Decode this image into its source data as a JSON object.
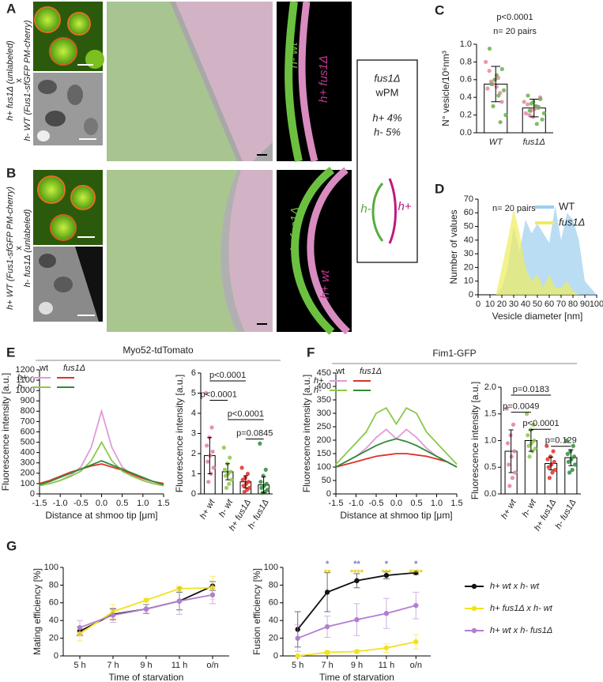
{
  "panels": [
    "A",
    "B",
    "C",
    "D",
    "E",
    "F",
    "G"
  ],
  "images": [
    {
      "side_text": [
        "h+ fus1Δ (unlabeled)",
        "x",
        "h- WT (Fus1-sfGFP PM-cherry)"
      ],
      "labels": [
        "h- wt",
        "h+ fus1Δ"
      ]
    },
    {
      "side_text": [
        "h+ WT (Fus1-sfGFP PM-cherry)",
        "x",
        "h- fus1Δ (unlabeled)"
      ],
      "labels": [
        "h- fus1Δ",
        "h+ wt"
      ]
    }
  ],
  "box": {
    "lines": [
      "fus1Δ",
      "wPM",
      "h+ 4%",
      "h- 5%"
    ],
    "diagram": [
      "h-",
      "h+"
    ]
  },
  "chart_data": [
    {
      "type": "bar",
      "ylabel": "N° vesicle/10⁶nm³",
      "categories": [
        "WT",
        "fus1Δ"
      ],
      "values": [
        0.55,
        0.28
      ],
      "errors": [
        0.2,
        0.1
      ],
      "ylim": [
        0,
        1
      ],
      "yticks": [
        {
          "value": 0,
          "label": "0.0"
        },
        0.2,
        0.4,
        0.6,
        0.8,
        {
          "value": 1,
          "label": "1.0"
        }
      ],
      "annotations": [
        "p<0.0001",
        "n= 20 pairs"
      ],
      "points": [
        {
          "category": "WT",
          "color": "#e3899f",
          "values": [
            0.8,
            0.62,
            0.55,
            0.5,
            0.45,
            0.6,
            0.7,
            0.35,
            0.52,
            0.58
          ]
        },
        {
          "category": "WT",
          "color": "#6ab04c",
          "values": [
            0.95,
            0.72,
            0.65,
            0.55,
            0.48,
            0.42,
            0.3,
            0.2,
            0.12,
            0.6
          ]
        },
        {
          "category": "fus1Δ",
          "color": "#e3899f",
          "values": [
            0.35,
            0.3,
            0.25,
            0.22,
            0.28,
            0.18,
            0.32,
            0.4,
            0.27,
            0.2
          ]
        },
        {
          "category": "fus1Δ",
          "color": "#6ab04c",
          "values": [
            0.42,
            0.38,
            0.3,
            0.25,
            0.15,
            0.1,
            0.33,
            0.22,
            0.29,
            0.35
          ]
        }
      ]
    },
    {
      "type": "area",
      "xlabel": "Vesicle diameter [nm]",
      "ylabel": "Number of values",
      "annotations": [
        "n= 20 pairs"
      ],
      "x": [
        10,
        15,
        20,
        25,
        30,
        35,
        40,
        45,
        50,
        55,
        60,
        65,
        70,
        75,
        80,
        85,
        90,
        95,
        100
      ],
      "series": [
        {
          "name": "WT",
          "color": "#9ccfee",
          "values": [
            0,
            0,
            5,
            20,
            50,
            32,
            55,
            45,
            52,
            45,
            38,
            65,
            40,
            60,
            55,
            40,
            10,
            5,
            0
          ]
        },
        {
          "name": "fus1Δ",
          "color": "#f0ec5c",
          "values": [
            0,
            0,
            20,
            40,
            63,
            45,
            20,
            10,
            15,
            5,
            15,
            5,
            5,
            10,
            3,
            0,
            0,
            0,
            0
          ]
        }
      ],
      "legend": "upper right",
      "xlim": [
        0,
        100
      ],
      "xticks": [
        0,
        10,
        20,
        30,
        40,
        50,
        60,
        70,
        80,
        90,
        100
      ],
      "ylim": [
        0,
        70
      ],
      "yticks": [
        0,
        10,
        20,
        30,
        40,
        50,
        60,
        70
      ]
    },
    {
      "type": "line",
      "title": "Myo52-tdTomato",
      "xlabel": "Distance at shmoo tip [μm]",
      "ylabel": "Fluorescence intensity [a.u.]",
      "legend_rows": [
        "h+",
        "h-"
      ],
      "legend_columns": [
        "wt",
        "fus1Δ"
      ],
      "x": [
        -1.5,
        -1.25,
        -1,
        -0.75,
        -0.5,
        -0.25,
        0,
        0.25,
        0.5,
        0.75,
        1,
        1.25,
        1.5
      ],
      "series": [
        {
          "color": "#e29bd6",
          "values": [
            80,
            100,
            130,
            180,
            260,
            450,
            800,
            450,
            260,
            180,
            130,
            100,
            80
          ]
        },
        {
          "color": "#e0302a",
          "values": [
            100,
            130,
            170,
            210,
            240,
            270,
            290,
            260,
            230,
            190,
            150,
            120,
            100
          ]
        },
        {
          "color": "#8cc84b",
          "values": [
            80,
            100,
            130,
            170,
            220,
            320,
            500,
            320,
            220,
            170,
            130,
            100,
            80
          ]
        },
        {
          "color": "#2e8b3a",
          "values": [
            90,
            120,
            160,
            200,
            240,
            280,
            320,
            280,
            240,
            200,
            160,
            120,
            90
          ]
        }
      ],
      "xlim": [
        -1.5,
        1.5
      ],
      "xticks": [
        -1.5,
        {
          "value": -1,
          "label": "-1.0"
        },
        -0.5,
        {
          "value": 0,
          "label": "0.0"
        },
        0.5,
        {
          "value": 1,
          "label": "1.0"
        },
        1.5
      ],
      "ylim": [
        0,
        1200
      ],
      "yticks": [
        0,
        100,
        200,
        300,
        400,
        500,
        600,
        700,
        800,
        900,
        1000,
        1100,
        1200
      ]
    },
    {
      "type": "bar",
      "ylabel": "Fluorescence intensity [a.u.]",
      "categories": [
        "h+ wt",
        "h- wt",
        "h+ fus1Δ",
        "h- fus1Δ"
      ],
      "values": [
        1.9,
        1.1,
        0.6,
        0.45
      ],
      "errors": [
        0.9,
        0.4,
        0.3,
        0.4
      ],
      "ylim": [
        0,
        6
      ],
      "yticks": [
        0,
        1,
        2,
        3,
        4,
        5,
        6
      ],
      "comparisons": [
        {
          "label": "p<0.0001",
          "pair": [
            "h+ wt",
            "h+ fus1Δ"
          ]
        },
        {
          "label": "p<0.0001",
          "pair": [
            "h+ wt",
            "h- wt"
          ]
        },
        {
          "label": "p<0.0001",
          "pair": [
            "h- wt",
            "h- fus1Δ"
          ]
        },
        {
          "label": "p=0.0845",
          "pair": [
            "h+ fus1Δ",
            "h- fus1Δ"
          ]
        }
      ],
      "points": [
        {
          "category": "h+ wt",
          "color": "#e07fa0",
          "values": [
            5.0,
            3.3,
            2.8,
            2.4,
            2.1,
            1.9,
            1.6,
            1.3,
            1.0,
            0.6
          ]
        },
        {
          "category": "h- wt",
          "color": "#8cc84b",
          "values": [
            2.3,
            1.8,
            1.5,
            1.2,
            1.1,
            1.0,
            0.9,
            0.7,
            0.5,
            0.3
          ]
        },
        {
          "category": "h+ fus1Δ",
          "color": "#e0302a",
          "values": [
            1.3,
            1.0,
            0.8,
            0.7,
            0.6,
            0.5,
            0.4,
            0.3,
            0.2,
            0.1
          ]
        },
        {
          "category": "h- fus1Δ",
          "color": "#2e8b3a",
          "values": [
            2.5,
            1.2,
            0.9,
            0.6,
            0.5,
            0.4,
            0.3,
            0.2,
            0.1,
            0.05
          ]
        }
      ]
    },
    {
      "type": "line",
      "title": "Fim1-GFP",
      "xlabel": "Distance at shmoo tip [μm]",
      "ylabel": "Fluorescence intensity [a.u.]",
      "legend_rows": [
        "h+",
        "h-"
      ],
      "legend_columns": [
        "wt",
        "fus1Δ"
      ],
      "x": [
        -1.5,
        -1.25,
        -1,
        -0.75,
        -0.5,
        -0.25,
        0,
        0.25,
        0.5,
        0.75,
        1,
        1.25,
        1.5
      ],
      "series": [
        {
          "color": "#e29bd6",
          "values": [
            100,
            120,
            140,
            170,
            210,
            240,
            205,
            240,
            210,
            170,
            140,
            120,
            100
          ]
        },
        {
          "color": "#e0302a",
          "values": [
            100,
            110,
            120,
            130,
            140,
            145,
            150,
            150,
            145,
            140,
            130,
            120,
            100
          ]
        },
        {
          "color": "#8cc84b",
          "values": [
            110,
            150,
            190,
            230,
            300,
            320,
            260,
            320,
            300,
            230,
            190,
            150,
            110
          ]
        },
        {
          "color": "#2e8b3a",
          "values": [
            100,
            120,
            140,
            160,
            180,
            195,
            205,
            195,
            180,
            160,
            140,
            120,
            100
          ]
        }
      ],
      "xlim": [
        -1.5,
        1.5
      ],
      "xticks": [
        -1.5,
        {
          "value": -1,
          "label": "-1.0"
        },
        -0.5,
        {
          "value": 0,
          "label": "0.0"
        },
        0.5,
        {
          "value": 1,
          "label": "1.0"
        },
        1.5
      ],
      "ylim": [
        0,
        450
      ],
      "yticks": [
        0,
        50,
        100,
        150,
        200,
        250,
        300,
        350,
        400,
        450
      ]
    },
    {
      "type": "bar",
      "ylabel": "Fluorescence intensity [a.u.]",
      "categories": [
        "h+ wt",
        "h- wt",
        "h+ fus1Δ",
        "h- fus1Δ"
      ],
      "values": [
        0.8,
        1.0,
        0.57,
        0.68
      ],
      "errors": [
        0.4,
        0.2,
        0.12,
        0.15
      ],
      "ylim": [
        0,
        2
      ],
      "yticks": [
        {
          "value": 0,
          "label": "0.0"
        },
        0.5,
        {
          "value": 1,
          "label": "1.0"
        },
        1.5,
        {
          "value": 2,
          "label": "2.0"
        }
      ],
      "comparisons": [
        {
          "label": "p=0.0183",
          "pair": [
            "h+ wt",
            "h+ fus1Δ"
          ]
        },
        {
          "label": "p=0.0049",
          "pair": [
            "h+ wt",
            "h- wt"
          ]
        },
        {
          "label": "p<0.0001",
          "pair": [
            "h- wt",
            "h+ fus1Δ"
          ]
        },
        {
          "label": "p=0.129",
          "pair": [
            "h+ fus1Δ",
            "h- fus1Δ"
          ]
        }
      ],
      "points": [
        {
          "category": "h+ wt",
          "color": "#e07fa0",
          "values": [
            1.6,
            1.3,
            1.1,
            0.95,
            0.8,
            0.7,
            0.55,
            0.4,
            0.3,
            0.15
          ]
        },
        {
          "category": "h- wt",
          "color": "#8cc84b",
          "values": [
            1.5,
            1.3,
            1.2,
            1.1,
            1.0,
            0.95,
            0.9,
            0.85,
            0.8,
            0.7
          ]
        },
        {
          "category": "h+ fus1Δ",
          "color": "#e0302a",
          "values": [
            0.9,
            0.8,
            0.7,
            0.65,
            0.6,
            0.55,
            0.5,
            0.45,
            0.4,
            0.3
          ]
        },
        {
          "category": "h- fus1Δ",
          "color": "#2e8b3a",
          "values": [
            1.0,
            0.9,
            0.8,
            0.75,
            0.7,
            0.65,
            0.6,
            0.55,
            0.45,
            0.4
          ]
        }
      ]
    },
    {
      "type": "line",
      "xlabel": "Time of starvation",
      "ylabel": "Mating efficiency [%]",
      "categories": [
        "5 h",
        "7 h",
        "9 h",
        "11 h",
        "o/n"
      ],
      "series": [
        {
          "color": "#111111",
          "values": [
            28,
            47,
            53,
            62,
            79
          ],
          "errors": [
            5,
            6,
            5,
            10,
            5
          ]
        },
        {
          "color": "#f2e21b",
          "values": [
            25,
            50,
            63,
            76,
            77
          ],
          "errors": [
            8,
            8,
            2,
            3,
            13
          ]
        },
        {
          "color": "#b07fcf",
          "values": [
            32,
            46,
            53,
            62,
            69
          ],
          "errors": [
            8,
            8,
            5,
            15,
            10
          ]
        }
      ],
      "ylim": [
        0,
        100
      ],
      "yticks": [
        0,
        20,
        40,
        60,
        80,
        100
      ]
    },
    {
      "type": "line",
      "xlabel": "Time of starvation",
      "ylabel": "Fusion efficiency [%]",
      "categories": [
        "5 h",
        "7 h",
        "9 h",
        "11 h",
        "o/n"
      ],
      "series": [
        {
          "name": "h+ wt x h- wt",
          "color": "#111111",
          "values": [
            30,
            72,
            85,
            91,
            94
          ],
          "errors": [
            20,
            22,
            8,
            4,
            2
          ]
        },
        {
          "name": "h+ fus1Δ x h- wt",
          "color": "#f2e21b",
          "values": [
            0,
            4,
            5,
            9,
            16
          ],
          "errors": [
            1,
            2,
            2,
            5,
            8
          ]
        },
        {
          "name": "h+ wt x h- fus1Δ",
          "color": "#b07fcf",
          "values": [
            20,
            33,
            41,
            48,
            57
          ],
          "errors": [
            15,
            12,
            18,
            17,
            15
          ]
        }
      ],
      "stars": [
        {
          "color": "#7b7bc8",
          "labels": [
            null,
            "*",
            "**",
            "*",
            "*"
          ]
        },
        {
          "color": "#e8cc10",
          "labels": [
            null,
            "**",
            "****",
            "***",
            "****"
          ]
        }
      ],
      "ylim": [
        0,
        100
      ],
      "yticks": [
        0,
        20,
        40,
        60,
        80,
        100
      ]
    }
  ]
}
